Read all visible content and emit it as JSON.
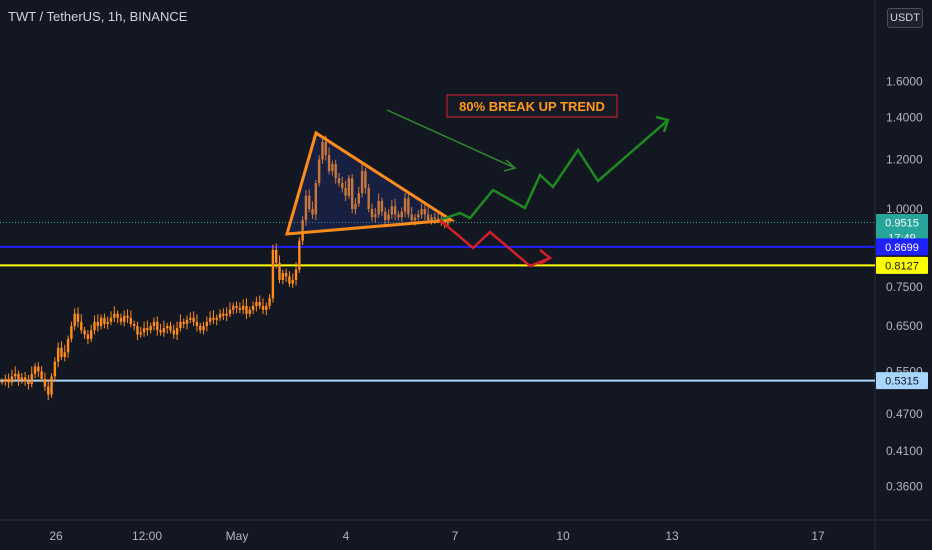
{
  "header": {
    "symbol_title": "TWT / TetherUS, 1h, BINANCE",
    "currency": "USDT"
  },
  "chart_data": {
    "type": "candlestick",
    "title": "TWT / TetherUS, 1h, BINANCE",
    "y_scale": "log",
    "y_ticks": [
      "1.6000",
      "1.4000",
      "1.2000",
      "1.0000",
      "0.7500",
      "0.6500",
      "0.5500",
      "0.4700",
      "0.4100",
      "0.3600"
    ],
    "x_ticks": [
      "26",
      "12:00",
      "May",
      "4",
      "7",
      "10",
      "13",
      "17"
    ],
    "price_lines": [
      {
        "name": "last",
        "value": 0.9515,
        "label": "0.9515",
        "countdown": "17:49",
        "color": "#26a69a",
        "style": "dotted"
      },
      {
        "name": "blue",
        "value": 0.8699,
        "label": "0.8699",
        "color": "#1e22ff",
        "style": "solid"
      },
      {
        "name": "yellow",
        "value": 0.8127,
        "label": "0.8127",
        "color": "#ffff00",
        "style": "solid"
      },
      {
        "name": "lightblue",
        "value": 0.5315,
        "label": "0.5315",
        "color": "#a9d6ff",
        "style": "solid"
      }
    ],
    "annotation": "80% BREAK UP TREND",
    "series_close": [
      0.53,
      0.535,
      0.528,
      0.54,
      0.545,
      0.532,
      0.538,
      0.53,
      0.525,
      0.545,
      0.56,
      0.55,
      0.535,
      0.52,
      0.505,
      0.54,
      0.57,
      0.6,
      0.58,
      0.59,
      0.62,
      0.65,
      0.68,
      0.66,
      0.64,
      0.63,
      0.62,
      0.64,
      0.66,
      0.65,
      0.67,
      0.655,
      0.66,
      0.67,
      0.68,
      0.67,
      0.66,
      0.675,
      0.67,
      0.655,
      0.65,
      0.63,
      0.635,
      0.645,
      0.64,
      0.65,
      0.66,
      0.64,
      0.635,
      0.645,
      0.65,
      0.64,
      0.63,
      0.645,
      0.66,
      0.655,
      0.665,
      0.67,
      0.66,
      0.65,
      0.64,
      0.65,
      0.66,
      0.67,
      0.665,
      0.67,
      0.68,
      0.675,
      0.68,
      0.69,
      0.7,
      0.695,
      0.69,
      0.7,
      0.68,
      0.69,
      0.7,
      0.71,
      0.7,
      0.69,
      0.7,
      0.72,
      0.86,
      0.82,
      0.77,
      0.79,
      0.78,
      0.76,
      0.77,
      0.8,
      0.89,
      0.96,
      1.05,
      1.0,
      0.98,
      1.1,
      1.2,
      1.28,
      1.22,
      1.15,
      1.18,
      1.12,
      1.1,
      1.08,
      1.05,
      1.12,
      1.0,
      1.02,
      1.06,
      1.15,
      1.08,
      1.0,
      0.97,
      0.98,
      1.03,
      0.99,
      0.96,
      0.98,
      1.01,
      0.98,
      0.97,
      0.99,
      1.04,
      0.98,
      0.96,
      0.97,
      0.98,
      1.0,
      0.98,
      0.96,
      0.97,
      0.965,
      0.96,
      0.955,
      0.95,
      0.9515
    ]
  },
  "drawings": {
    "triangle_color": "#ff8c1a",
    "green_path_color": "#2e8b2e",
    "red_path_color": "#e0202a",
    "candle_color": "#ff8c1a"
  }
}
